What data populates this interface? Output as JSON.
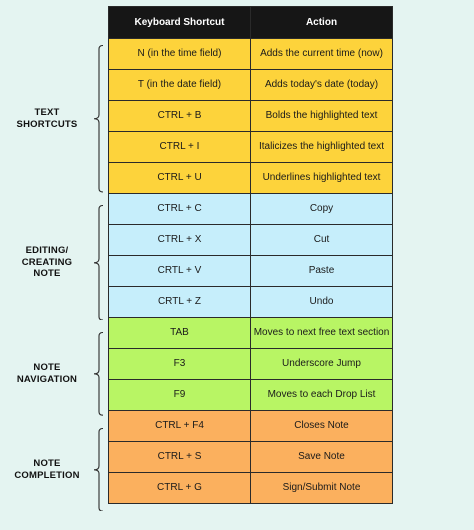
{
  "colors": {
    "header": "#161616",
    "text_shortcuts": "#fdd33b",
    "editing": "#c6eefb",
    "navigation": "#b8f564",
    "completion": "#fbb05e",
    "background": "#e4f4f1"
  },
  "table": {
    "headers": {
      "shortcut": "Keyboard Shortcut",
      "action": "Action"
    }
  },
  "groups": [
    {
      "label_lines": [
        "TEXT",
        "SHORTCUTS"
      ],
      "color_key": "text_shortcuts",
      "rows": [
        {
          "shortcut": "N (in the time field)",
          "action": "Adds the current time (now)"
        },
        {
          "shortcut": "T (in the date field)",
          "action": "Adds today's date (today)"
        },
        {
          "shortcut": "CTRL + B",
          "action": "Bolds the highlighted text"
        },
        {
          "shortcut": "CTRL + I",
          "action": "Italicizes the highlighted text"
        },
        {
          "shortcut": "CTRL + U",
          "action": "Underlines highlighted text"
        }
      ]
    },
    {
      "label_lines": [
        "EDITING/",
        "CREATING",
        "NOTE"
      ],
      "color_key": "editing",
      "rows": [
        {
          "shortcut": "CTRL + C",
          "action": "Copy"
        },
        {
          "shortcut": "CTRL + X",
          "action": "Cut"
        },
        {
          "shortcut": "CRTL + V",
          "action": "Paste"
        },
        {
          "shortcut": "CRTL + Z",
          "action": "Undo"
        }
      ]
    },
    {
      "label_lines": [
        "NOTE",
        "NAVIGATION"
      ],
      "color_key": "navigation",
      "rows": [
        {
          "shortcut": "TAB",
          "action": "Moves to next free text section"
        },
        {
          "shortcut": "F3",
          "action": "Underscore Jump"
        },
        {
          "shortcut": "F9",
          "action": "Moves to each Drop List"
        }
      ]
    },
    {
      "label_lines": [
        "NOTE",
        "COMPLETION"
      ],
      "color_key": "completion",
      "rows": [
        {
          "shortcut": "CTRL + F4",
          "action": "Closes Note"
        },
        {
          "shortcut": "CTRL + S",
          "action": "Save Note"
        },
        {
          "shortcut": "CTRL + G",
          "action": "Sign/Submit Note"
        }
      ]
    }
  ]
}
